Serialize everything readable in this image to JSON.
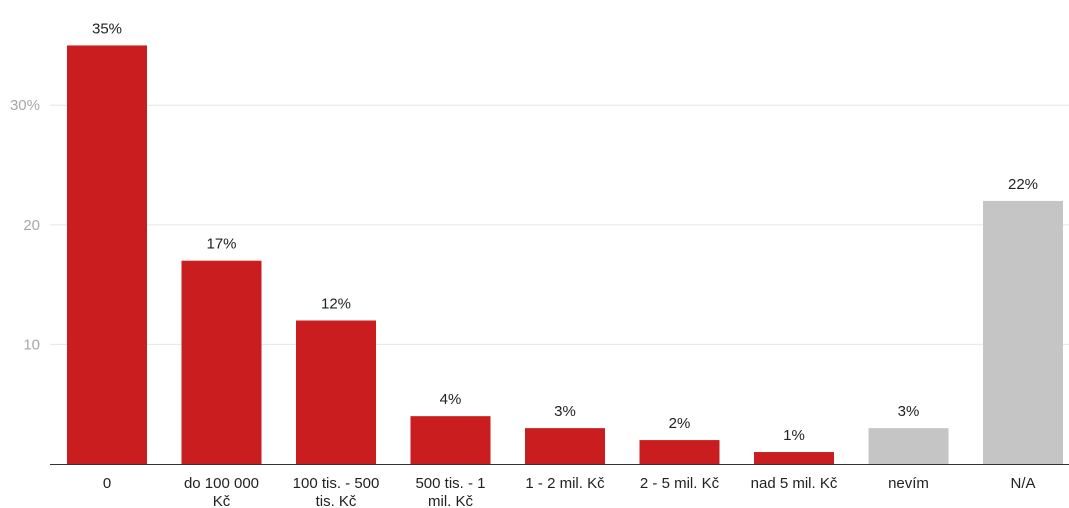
{
  "chart_data": {
    "type": "bar",
    "categories": [
      [
        "0"
      ],
      [
        "do 100 000",
        "Kč"
      ],
      [
        "100 tis. - 500",
        "tis. Kč"
      ],
      [
        "500 tis. - 1",
        "mil. Kč"
      ],
      [
        "1 - 2 mil. Kč"
      ],
      [
        "2 - 5 mil. Kč"
      ],
      [
        "nad 5 mil. Kč"
      ],
      [
        "nevím"
      ],
      [
        "N/A"
      ]
    ],
    "values": [
      35,
      17,
      12,
      4,
      3,
      2,
      1,
      3,
      22
    ],
    "data_labels": [
      "35%",
      "17%",
      "12%",
      "4%",
      "3%",
      "2%",
      "1%",
      "3%",
      "22%"
    ],
    "bar_colors": [
      "#c91d1f",
      "#c91d1f",
      "#c91d1f",
      "#c91d1f",
      "#c91d1f",
      "#c91d1f",
      "#c91d1f",
      "#c5c5c5",
      "#c5c5c5"
    ],
    "ylim": [
      0,
      38.8
    ],
    "yticks": [
      {
        "value": 10,
        "label": "10"
      },
      {
        "value": 20,
        "label": "20"
      },
      {
        "value": 30,
        "label": "30%"
      }
    ],
    "grid": true,
    "title": "",
    "xlabel": "",
    "ylabel": ""
  }
}
